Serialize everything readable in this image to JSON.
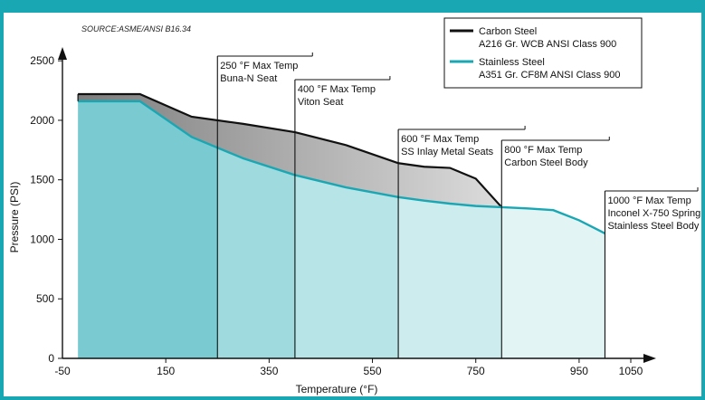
{
  "chart_data": {
    "type": "area",
    "source": "SOURCE:ASME/ANSI B16.34",
    "xlabel": "Temperature (°F)",
    "ylabel": "Pressure (PSI)",
    "xlim": [
      -50,
      1050
    ],
    "ylim": [
      0,
      2600
    ],
    "xticks": [
      "-50",
      "150",
      "350",
      "550",
      "750",
      "950",
      "1050"
    ],
    "xtick_values": [
      -50,
      150,
      350,
      550,
      750,
      950,
      1050
    ],
    "yticks": [
      "0",
      "500",
      "1000",
      "1500",
      "2000",
      "2500"
    ],
    "ytick_values": [
      0,
      500,
      1000,
      1500,
      2000,
      2500
    ],
    "series": [
      {
        "name": "Carbon Steel",
        "detail": "A216 Gr. WCB ANSI Class 900",
        "color": "#111111",
        "fill": "#8f8f8f",
        "x": [
          -20,
          100,
          200,
          300,
          400,
          500,
          600,
          650,
          700,
          750,
          800
        ],
        "y": [
          2220,
          2220,
          2030,
          1970,
          1900,
          1790,
          1640,
          1610,
          1600,
          1510,
          1270
        ]
      },
      {
        "name": "Stainless Steel",
        "detail": "A351 Gr. CF8M ANSI Class 900",
        "color": "#1aa7b4",
        "x": [
          -20,
          100,
          200,
          300,
          400,
          500,
          600,
          650,
          700,
          750,
          800,
          850,
          900,
          950,
          1000
        ],
        "y": [
          2160,
          2160,
          1860,
          1680,
          1540,
          1435,
          1355,
          1325,
          1300,
          1280,
          1270,
          1260,
          1245,
          1160,
          1050
        ]
      }
    ],
    "annotations": [
      {
        "x": 250,
        "lines": [
          "250 °F Max Temp",
          "Buna-N Seat"
        ]
      },
      {
        "x": 400,
        "lines": [
          "400 °F Max Temp",
          "Viton Seat"
        ]
      },
      {
        "x": 600,
        "lines": [
          "600 °F Max Temp",
          "SS Inlay Metal Seats"
        ]
      },
      {
        "x": 800,
        "lines": [
          "800 °F Max Temp",
          "Carbon Steel Body"
        ]
      },
      {
        "x": 1000,
        "lines": [
          "1000 °F Max Temp",
          "Inconel X-750 Spring",
          "Stainless Steel Body"
        ]
      }
    ],
    "band_colors": [
      "#79cbd1",
      "#9fdade",
      "#b7e4e6",
      "#cdeced",
      "#e2f4f4"
    ],
    "legend_position": "top-right",
    "grid": false
  }
}
